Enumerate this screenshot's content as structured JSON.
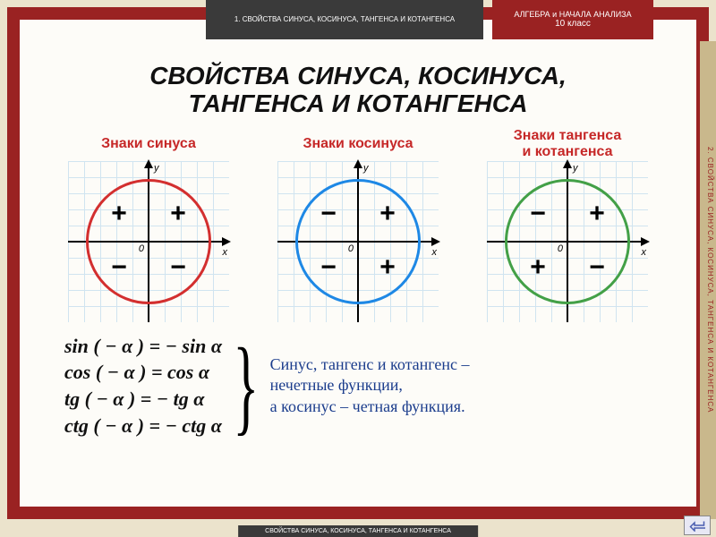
{
  "header": {
    "dark_tab": "1. СВОЙСТВА СИНУСА, КОСИНУСА, ТАНГЕНСА И КОТАНГЕНСА",
    "red_tab_line1": "АЛГЕБРА и НАЧАЛА АНАЛИЗА",
    "red_tab_line2": "10 класс"
  },
  "title": {
    "line1": "СВОЙСТВА СИНУСА, КОСИНУСА,",
    "line2": "ТАНГЕНСА И КОТАНГЕНСА"
  },
  "side_strip": "2. СВОЙСТВА СИНУСА, КОСИНУСА, ТАНГЕНСА И КОТАНГЕНСА",
  "bottom_tab": "СВОЙСТВА СИНУСА, КОСИНУСА, ТАНГЕНСА И КОТАНГЕНСА",
  "colors": {
    "frame": "#9a2222",
    "caption": "#c62828",
    "explain_text": "#1a3c8c",
    "grid": "#d0e4f0",
    "bg": "#fdfcf8"
  },
  "charts": [
    {
      "caption": "Знаки синуса",
      "ring_color": "#d32f2f",
      "quadrants": {
        "q1": "+",
        "q2": "+",
        "q3": "−",
        "q4": "−"
      },
      "axis_labels": {
        "x": "x",
        "y": "y",
        "origin": "0"
      }
    },
    {
      "caption": "Знаки косинуса",
      "ring_color": "#1e88e5",
      "quadrants": {
        "q1": "+",
        "q2": "−",
        "q3": "−",
        "q4": "+"
      },
      "axis_labels": {
        "x": "x",
        "y": "y",
        "origin": "0"
      }
    },
    {
      "caption": "Знаки тангенса\nи котангенса",
      "ring_color": "#43a047",
      "quadrants": {
        "q1": "+",
        "q2": "−",
        "q3": "+",
        "q4": "−"
      },
      "axis_labels": {
        "x": "x",
        "y": "y",
        "origin": "0"
      }
    }
  ],
  "formulas": [
    "sin ( − α ) = − sin α",
    "cos ( − α ) =    cos α",
    "tg ( − α ) = − tg α",
    "ctg ( − α ) = − ctg α"
  ],
  "explanation": {
    "line1": "Синус, тангенс и котангенс –",
    "line2": "нечетные функции,",
    "line3": "а косинус – четная функция."
  }
}
